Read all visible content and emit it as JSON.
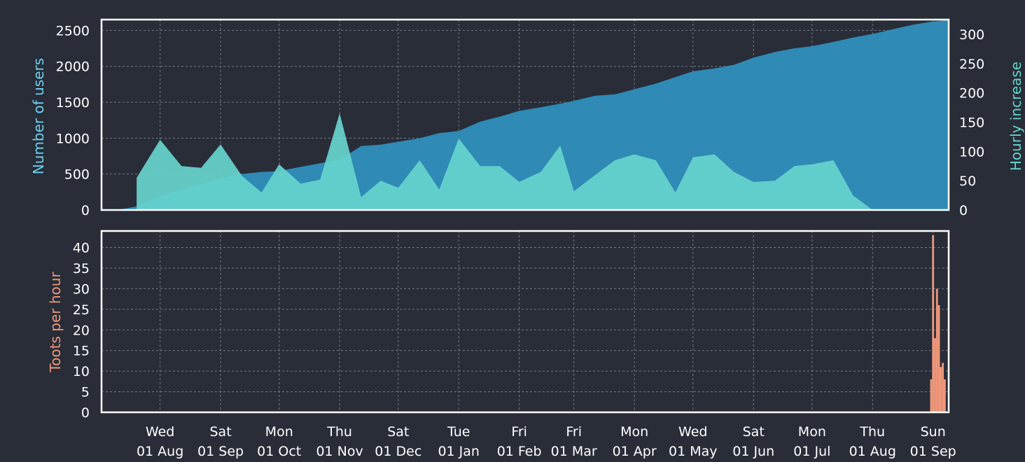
{
  "chart_data": [
    {
      "type": "area",
      "panel": "top",
      "ylabel": "Number of users",
      "y2label": "Hourly increase",
      "ylim": [
        0,
        2650
      ],
      "y2lim": [
        0,
        325
      ],
      "yticks": [
        0,
        500,
        1000,
        1500,
        2000,
        2500
      ],
      "y2ticks": [
        0,
        50,
        100,
        150,
        200,
        250,
        300
      ],
      "grid": true,
      "colors": {
        "users": "#2f8ab5",
        "increase": "#67d4cd",
        "ylabel": "#6fd0f0",
        "y2label": "#67d4cd"
      },
      "series": [
        {
          "key": "users",
          "x": [
            "2018-07-10",
            "2018-07-20",
            "2018-08-01",
            "2018-08-12",
            "2018-08-22",
            "2018-09-01",
            "2018-09-12",
            "2018-09-22",
            "2018-10-01",
            "2018-10-12",
            "2018-10-22",
            "2018-11-01",
            "2018-11-12",
            "2018-11-22",
            "2018-12-01",
            "2018-12-12",
            "2018-12-22",
            "2019-01-01",
            "2019-01-12",
            "2019-01-22",
            "2019-02-01",
            "2019-02-12",
            "2019-02-22",
            "2019-03-01",
            "2019-03-12",
            "2019-03-22",
            "2019-04-01",
            "2019-04-12",
            "2019-04-22",
            "2019-05-01",
            "2019-05-12",
            "2019-05-22",
            "2019-06-01",
            "2019-06-12",
            "2019-06-22",
            "2019-07-01",
            "2019-07-12",
            "2019-07-22",
            "2019-08-01",
            "2019-08-12",
            "2019-08-22",
            "2019-08-31",
            "2019-09-07"
          ],
          "values": [
            0,
            50,
            190,
            290,
            360,
            440,
            500,
            530,
            540,
            600,
            650,
            700,
            890,
            910,
            950,
            1000,
            1070,
            1100,
            1230,
            1300,
            1380,
            1430,
            1480,
            1520,
            1590,
            1610,
            1680,
            1760,
            1850,
            1930,
            1970,
            2020,
            2120,
            2200,
            2250,
            2280,
            2340,
            2400,
            2450,
            2520,
            2580,
            2620,
            2640
          ]
        },
        {
          "key": "increase",
          "x": [
            "2018-07-20",
            "2018-08-01",
            "2018-08-12",
            "2018-08-22",
            "2018-09-01",
            "2018-09-12",
            "2018-09-22",
            "2018-10-01",
            "2018-10-12",
            "2018-10-22",
            "2018-11-01",
            "2018-11-12",
            "2018-11-22",
            "2018-12-01",
            "2018-12-12",
            "2018-12-22",
            "2019-01-01",
            "2019-01-12",
            "2019-01-22",
            "2019-02-01",
            "2019-02-12",
            "2019-02-22",
            "2019-03-01",
            "2019-03-12",
            "2019-03-22",
            "2019-04-01",
            "2019-04-12",
            "2019-04-22",
            "2019-05-01",
            "2019-05-12",
            "2019-05-22",
            "2019-06-01",
            "2019-06-12",
            "2019-06-22",
            "2019-07-01",
            "2019-07-12",
            "2019-07-22",
            "2019-08-01",
            "2019-08-12",
            "2019-08-22",
            "2019-08-31"
          ],
          "values": [
            55,
            120,
            75,
            72,
            112,
            58,
            30,
            78,
            45,
            52,
            165,
            22,
            50,
            38,
            85,
            35,
            122,
            75,
            75,
            48,
            65,
            110,
            32,
            60,
            85,
            95,
            85,
            30,
            90,
            95,
            65,
            48,
            50,
            75,
            78,
            85,
            25,
            0,
            0,
            0,
            0
          ]
        }
      ]
    },
    {
      "type": "bar",
      "panel": "bottom",
      "ylabel": "Toots per hour",
      "ylim": [
        0,
        44
      ],
      "yticks": [
        0,
        5,
        10,
        15,
        20,
        25,
        30,
        35,
        40
      ],
      "grid": true,
      "colors": {
        "bars": "#f0987a",
        "ylabel": "#f0987a"
      },
      "x": [
        "2019-08-31",
        "2019-09-01",
        "2019-09-02",
        "2019-09-03",
        "2019-09-04",
        "2019-09-05",
        "2019-09-06",
        "2019-09-07"
      ],
      "values": [
        8,
        43,
        18,
        30,
        26,
        11,
        12,
        8
      ]
    }
  ],
  "x_axis": {
    "dates": [
      "2018-08-01",
      "2018-09-01",
      "2018-10-01",
      "2018-11-01",
      "2018-12-01",
      "2019-01-01",
      "2019-02-01",
      "2019-03-01",
      "2019-04-01",
      "2019-05-01",
      "2019-06-01",
      "2019-07-01",
      "2019-08-01",
      "2019-09-01"
    ],
    "tick_labels": [
      [
        "Wed",
        "01 Aug"
      ],
      [
        "Sat",
        "01 Sep"
      ],
      [
        "Mon",
        "01 Oct"
      ],
      [
        "Thu",
        "01 Nov"
      ],
      [
        "Sat",
        "01 Dec"
      ],
      [
        "Tue",
        "01 Jan"
      ],
      [
        "Fri",
        "01 Feb"
      ],
      [
        "Fri",
        "01 Mar"
      ],
      [
        "Mon",
        "01 Apr"
      ],
      [
        "Wed",
        "01 May"
      ],
      [
        "Sat",
        "01 Jun"
      ],
      [
        "Mon",
        "01 Jul"
      ],
      [
        "Thu",
        "01 Aug"
      ],
      [
        "Sun",
        "01 Sep"
      ]
    ]
  }
}
